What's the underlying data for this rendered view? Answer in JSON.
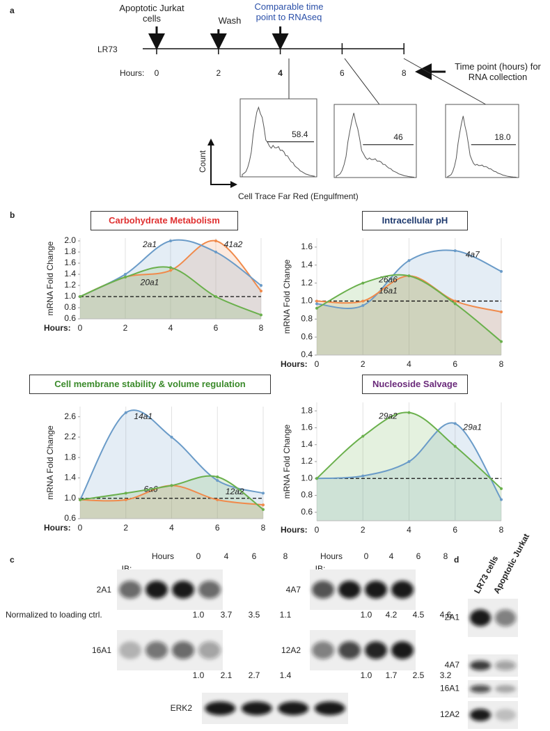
{
  "panel_a": {
    "label": "a",
    "annotations": [
      "Apoptotic Jurkat cells",
      "Wash",
      "Comparable time point to RNAseq"
    ],
    "line_label": "LR73",
    "hours_label": "Hours:",
    "hours": [
      0,
      2,
      4,
      6,
      8
    ],
    "time_note": "Time point (hours) for RNA collection",
    "y_axis": "Count",
    "x_axis": "Cell Trace Far Red (Engulfment)",
    "gate_labels": [
      "58.4",
      "46",
      "18.0"
    ]
  },
  "panel_b_label": "b",
  "chart_data": [
    {
      "type": "line",
      "title": "Carbohydrate Metabolism",
      "title_color": "#e03030",
      "y_label": "mRNA Fold Change",
      "x_label": "Hours:",
      "x": [
        0,
        2,
        4,
        6,
        8
      ],
      "xlim": [
        0,
        8
      ],
      "xticks": [
        0,
        2,
        4,
        6,
        8
      ],
      "ylim": [
        0.6,
        2.05
      ],
      "yticks": [
        0.6,
        0.8,
        {
          "value": 1,
          "label": "1.0"
        },
        1.2,
        1.4,
        1.6,
        1.8,
        {
          "value": 2,
          "label": "2.0"
        }
      ],
      "ref_line": 1,
      "grid": true,
      "series": [
        {
          "name": "41a2",
          "color": "#f08a4b",
          "values": [
            1.0,
            1.35,
            1.47,
            2.0,
            1.1
          ]
        },
        {
          "name": "2a1",
          "color": "#6a9bc8",
          "values": [
            1.0,
            1.4,
            2.0,
            1.8,
            1.2
          ]
        },
        {
          "name": "20a1",
          "color": "#6ab04c",
          "values": [
            1.0,
            1.35,
            1.52,
            1.0,
            0.67
          ]
        }
      ]
    },
    {
      "type": "line",
      "title": "Intracellular pH",
      "title_color": "#1f3a6e",
      "y_label": "mRNA Fold Change",
      "x_label": "Hours:",
      "x": [
        0,
        2,
        4,
        6,
        8
      ],
      "xlim": [
        0,
        8
      ],
      "xticks": [
        0,
        2,
        4,
        6,
        8
      ],
      "ylim": [
        0.4,
        1.7
      ],
      "yticks": [
        0.4,
        0.6,
        0.8,
        {
          "value": 1,
          "label": "1.0"
        },
        1.2,
        1.4,
        1.6
      ],
      "ref_line": 1,
      "grid": true,
      "series": [
        {
          "name": "4a7",
          "color": "#6a9bc8",
          "values": [
            0.97,
            0.95,
            1.45,
            1.56,
            1.33
          ]
        },
        {
          "name": "26a6",
          "color": "#f08a4b",
          "values": [
            1.0,
            1.0,
            1.28,
            1.0,
            0.88
          ]
        },
        {
          "name": "16a1",
          "color": "#6ab04c",
          "values": [
            0.92,
            1.2,
            1.28,
            0.97,
            0.55
          ]
        }
      ]
    },
    {
      "type": "line",
      "title": "Cell membrane stability & volume regulation",
      "title_color": "#3a8a2a",
      "y_label": "mRNA Fold Change",
      "x_label": "Hours:",
      "x": [
        0,
        2,
        4,
        6,
        8
      ],
      "xlim": [
        0,
        8
      ],
      "xticks": [
        0,
        2,
        4,
        6,
        8
      ],
      "ylim": [
        0.6,
        2.8
      ],
      "yticks": [
        0.6,
        {
          "value": 1,
          "label": "1.0"
        },
        1.4,
        1.8,
        2.2,
        2.6
      ],
      "ref_line": 1,
      "grid": true,
      "series": [
        {
          "name": "14a1",
          "color": "#6a9bc8",
          "values": [
            0.97,
            2.68,
            2.2,
            1.35,
            1.1
          ]
        },
        {
          "name": "6a6",
          "color": "#f08a4b",
          "values": [
            0.97,
            0.97,
            1.25,
            0.97,
            0.87
          ]
        },
        {
          "name": "12a2",
          "color": "#6ab04c",
          "values": [
            0.97,
            1.1,
            1.25,
            1.42,
            0.78
          ]
        }
      ]
    },
    {
      "type": "line",
      "title": "Nucleoside Salvage",
      "title_color": "#6a2a7a",
      "y_label": "mRNA Fold Change",
      "x_label": "Hours:",
      "x": [
        0,
        2,
        4,
        6,
        8
      ],
      "xlim": [
        0,
        8
      ],
      "xticks": [
        0,
        2,
        4,
        6,
        8
      ],
      "ylim": [
        0.5,
        1.9
      ],
      "yticks": [
        0.6,
        0.8,
        {
          "value": 1,
          "label": "1.0"
        },
        1.2,
        1.4,
        1.6,
        1.8
      ],
      "ref_line": 1,
      "grid": true,
      "series": [
        {
          "name": "29a1",
          "color": "#6a9bc8",
          "values": [
            1.0,
            1.03,
            1.2,
            1.65,
            0.75
          ]
        },
        {
          "name": "29a2",
          "color": "#6ab04c",
          "values": [
            1.0,
            1.5,
            1.78,
            1.38,
            0.88
          ]
        }
      ]
    }
  ],
  "panel_c": {
    "label": "c",
    "hours_label": "Hours",
    "times": [
      0,
      4,
      6,
      8
    ],
    "ib_label": "IB:",
    "norm_label": "Normalized to loading ctrl.",
    "left_blots": [
      {
        "name": "2A1",
        "quant": [
          "1.0",
          "3.7",
          "3.5",
          "1.1"
        ]
      },
      {
        "name": "16A1",
        "quant": [
          "1.0",
          "2.1",
          "2.7",
          "1.4"
        ]
      }
    ],
    "right_blots": [
      {
        "name": "4A7",
        "quant": [
          "1.0",
          "4.2",
          "4.5",
          "4.6"
        ]
      },
      {
        "name": "12A2",
        "quant": [
          "1.0",
          "1.7",
          "2.5",
          "3.2"
        ]
      }
    ],
    "loading": "ERK2"
  },
  "panel_d": {
    "label": "d",
    "lanes": [
      "LR73 cells",
      "Apoptotic Jurkat"
    ],
    "blots": [
      "2A1",
      "4A7",
      "16A1",
      "12A2"
    ]
  }
}
